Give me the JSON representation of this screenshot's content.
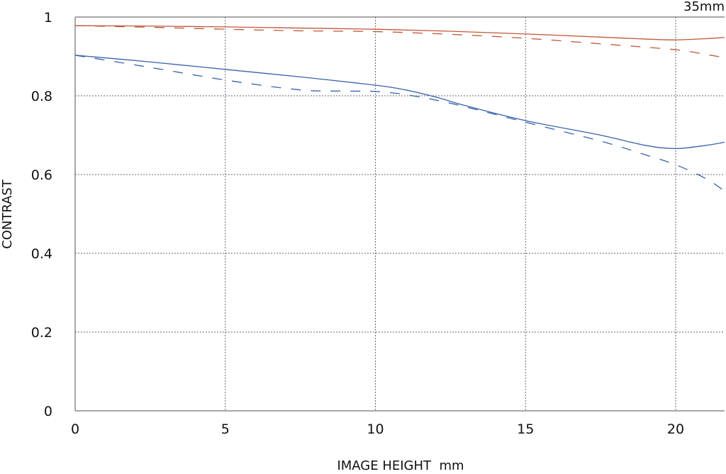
{
  "chart_data": {
    "type": "line",
    "title": "35mm",
    "xlabel": "IMAGE HEIGHT  mm",
    "ylabel": "CONTRAST",
    "xlim": [
      0,
      21.63
    ],
    "ylim": [
      0,
      1
    ],
    "xticks": [
      "0",
      "5",
      "10",
      "15",
      "20"
    ],
    "yticks": [
      "0",
      "0.2",
      "0.4",
      "0.6",
      "0.8",
      "1"
    ],
    "grid": true,
    "series": [
      {
        "color": "#c0583a",
        "style": "solid",
        "x": [
          0,
          2.5,
          5,
          7.5,
          10,
          12.5,
          15,
          17.5,
          19,
          20,
          21,
          21.63
        ],
        "y": [
          0.978,
          0.977,
          0.975,
          0.972,
          0.969,
          0.964,
          0.957,
          0.949,
          0.944,
          0.942,
          0.945,
          0.948
        ]
      },
      {
        "color": "#c0583a",
        "style": "dashed",
        "x": [
          0,
          2.5,
          5,
          7.5,
          10,
          12.5,
          15,
          17.5,
          20,
          21,
          21.63
        ],
        "y": [
          0.978,
          0.974,
          0.969,
          0.965,
          0.963,
          0.956,
          0.946,
          0.932,
          0.917,
          0.905,
          0.897
        ]
      },
      {
        "color": "#3a62aa",
        "style": "solid",
        "x": [
          0,
          2.5,
          5,
          7.5,
          10,
          11,
          12,
          13,
          15,
          17.5,
          19,
          20,
          21,
          21.63
        ],
        "y": [
          0.903,
          0.886,
          0.867,
          0.848,
          0.827,
          0.815,
          0.797,
          0.775,
          0.737,
          0.7,
          0.674,
          0.666,
          0.674,
          0.682
        ]
      },
      {
        "color": "#3a62aa",
        "style": "dashed",
        "x": [
          0,
          2.5,
          5,
          7.5,
          9,
          10,
          11,
          12.5,
          15,
          17.5,
          19,
          20,
          21,
          21.63
        ],
        "y": [
          0.903,
          0.872,
          0.84,
          0.815,
          0.812,
          0.811,
          0.803,
          0.781,
          0.733,
          0.685,
          0.65,
          0.625,
          0.59,
          0.558
        ]
      }
    ]
  }
}
